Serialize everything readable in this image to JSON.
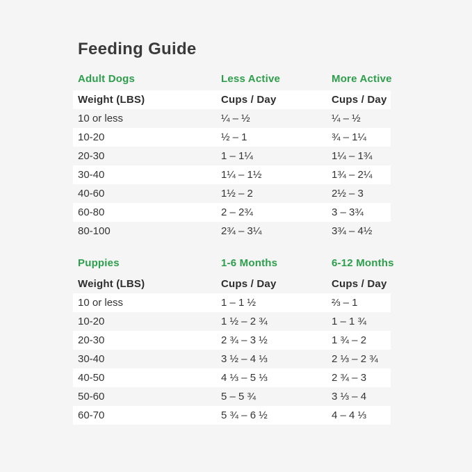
{
  "title": "Feeding Guide",
  "colors": {
    "accent_green": "#2d9e4b",
    "background": "#f4f5f4",
    "row_white": "#ffffff",
    "title_text": "#3a3a3a",
    "body_text": "#343434"
  },
  "adult": {
    "section_label": "Adult Dogs",
    "col2_label": "Less Active",
    "col3_label": "More Active",
    "header": {
      "weight": "Weight (LBS)",
      "cups": "Cups / Day"
    },
    "rows": [
      {
        "weight": "10 or less",
        "col2": "¼ – ½",
        "col3": "¼ – ½"
      },
      {
        "weight": "10-20",
        "col2": "½ – 1",
        "col3": "¾ – 1¼"
      },
      {
        "weight": "20-30",
        "col2": "1 – 1¼",
        "col3": "1¼ – 1¾"
      },
      {
        "weight": "30-40",
        "col2": "1¼ – 1½",
        "col3": "1¾ – 2¼"
      },
      {
        "weight": "40-60",
        "col2": "1½ – 2",
        "col3": "2½ – 3"
      },
      {
        "weight": "60-80",
        "col2": "2 – 2¾",
        "col3": "3 – 3¾"
      },
      {
        "weight": "80-100",
        "col2": "2¾ – 3¼",
        "col3": "3¾ – 4½"
      }
    ]
  },
  "puppies": {
    "section_label": "Puppies",
    "col2_label": "1-6 Months",
    "col3_label": "6-12 Months",
    "header": {
      "weight": "Weight (LBS)",
      "cups": "Cups / Day"
    },
    "rows": [
      {
        "weight": "10 or less",
        "col2": "1 – 1 ½",
        "col3": "⅔ – 1"
      },
      {
        "weight": "10-20",
        "col2": "1 ½ – 2 ¾",
        "col3": "1 – 1 ¾"
      },
      {
        "weight": "20-30",
        "col2": "2 ¾ – 3 ½",
        "col3": "1 ¾ – 2"
      },
      {
        "weight": "30-40",
        "col2": "3 ½ – 4 ⅓",
        "col3": "2 ⅓ – 2 ¾"
      },
      {
        "weight": "40-50",
        "col2": "4 ⅓ – 5 ⅓",
        "col3": "2 ¾ – 3"
      },
      {
        "weight": "50-60",
        "col2": "5 – 5 ¾",
        "col3": "3 ⅓ – 4"
      },
      {
        "weight": "60-70",
        "col2": "5 ¾ – 6 ½",
        "col3": "4 – 4 ⅓"
      }
    ]
  }
}
